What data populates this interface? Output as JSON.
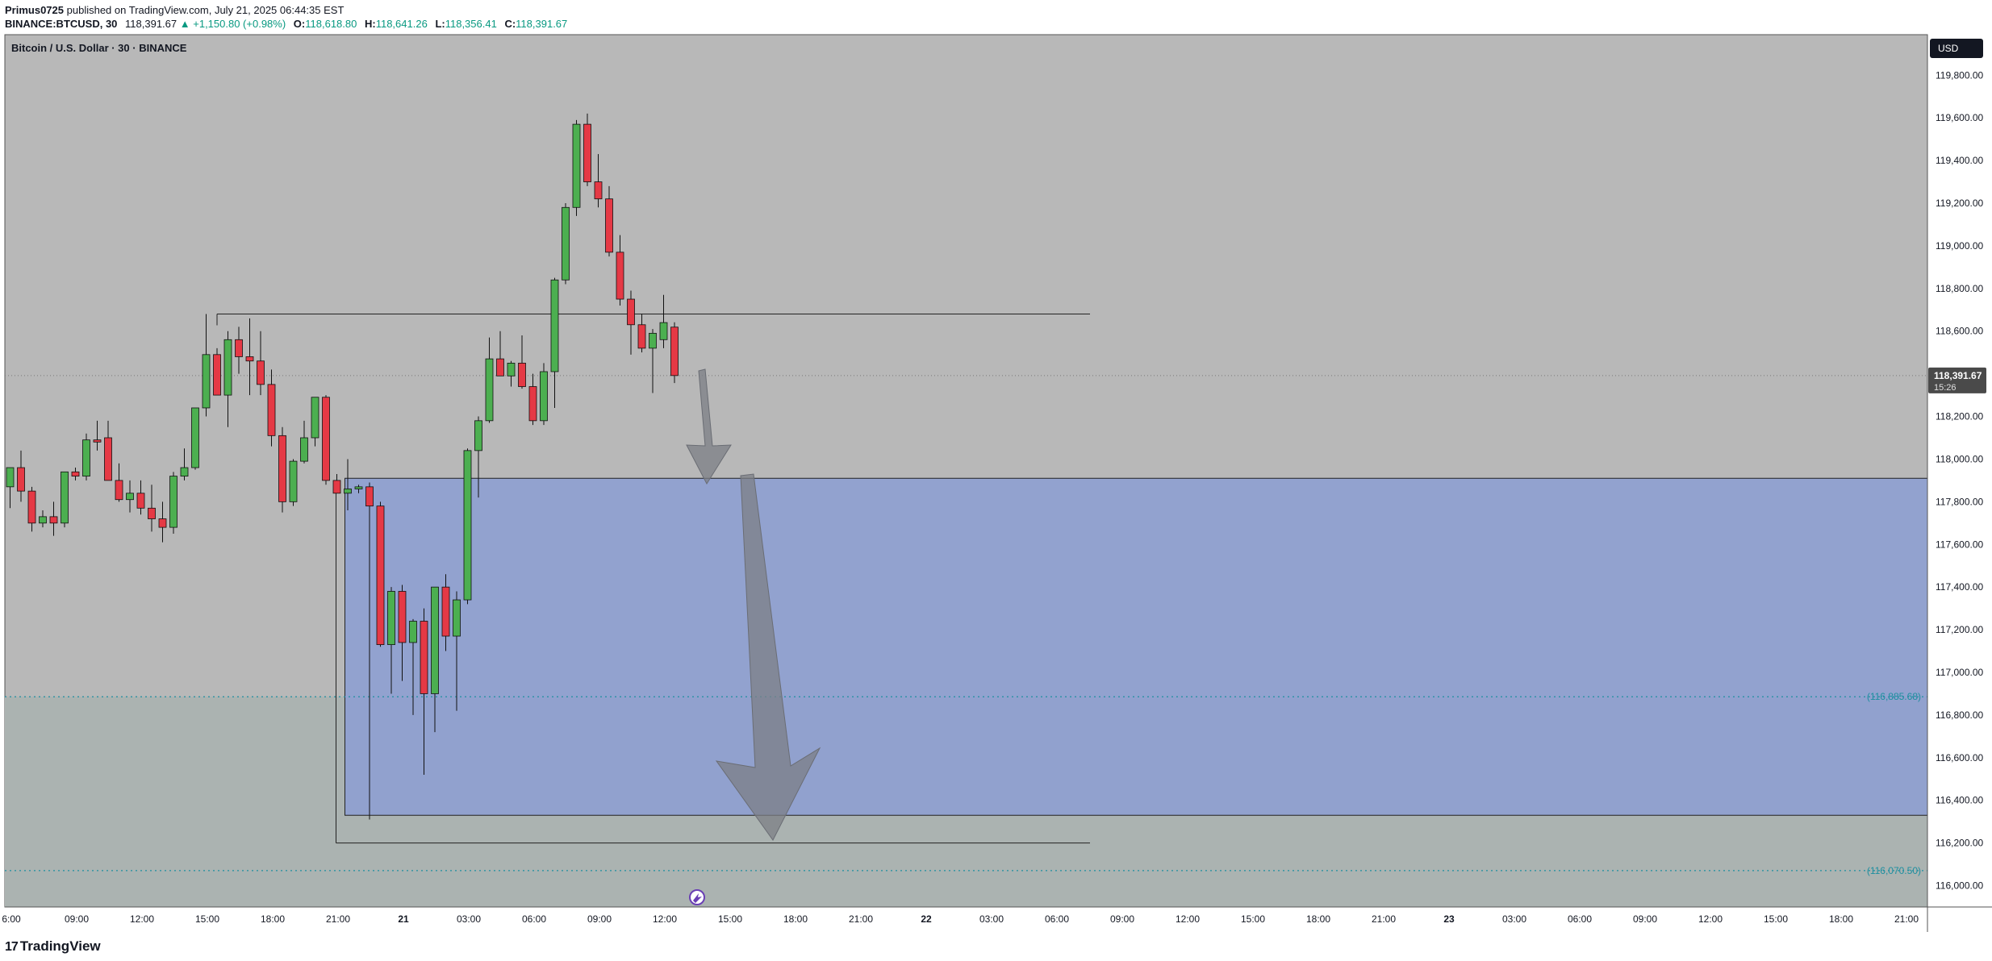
{
  "header": {
    "author": "Primus0725",
    "publish_text": "published on TradingView.com, July 21, 2025 06:44:35 EST",
    "symbol": "BINANCE:BTCUSD, 30",
    "last": "118,391.67",
    "change": "▲ +1,150.80 (+0.98%)",
    "o_label": "O:",
    "o": "118,618.80",
    "h_label": "H:",
    "h": "118,641.26",
    "l_label": "L:",
    "l": "118,356.41",
    "c_label": "C:",
    "c": "118,391.67"
  },
  "chart_title": "Bitcoin / U.S. Dollar · 30 · BINANCE",
  "currency_badge": "USD",
  "footer": {
    "brand": "TradingView",
    "brand_mark": "17"
  },
  "colors": {
    "background": "#b8b8b8",
    "zone_fill": "#8ea0d0",
    "up": "#4caf50",
    "down": "#e53945",
    "teal": "#1e8fa0",
    "price_badge": "#4a4a4a"
  },
  "chart_data": {
    "type": "candlestick",
    "interval_minutes": 30,
    "ylim": [
      115900,
      119990
    ],
    "y_ticks": [
      "116,000.00",
      "116,200.00",
      "116,400.00",
      "116,600.00",
      "116,800.00",
      "117,000.00",
      "117,200.00",
      "117,400.00",
      "117,600.00",
      "117,800.00",
      "118,000.00",
      "118,200.00",
      "118,400.00",
      "118,600.00",
      "118,800.00",
      "119,000.00",
      "119,200.00",
      "119,400.00",
      "119,600.00",
      "119,800.00"
    ],
    "x_ticks": [
      "6:00",
      "09:00",
      "12:00",
      "15:00",
      "18:00",
      "21:00",
      "21",
      "03:00",
      "06:00",
      "09:00",
      "12:00",
      "15:00",
      "18:00",
      "21:00",
      "22",
      "03:00",
      "06:00",
      "09:00",
      "12:00",
      "15:00",
      "18:00",
      "21:00",
      "23",
      "03:00",
      "06:00",
      "09:00",
      "12:00",
      "15:00",
      "18:00",
      "21:00"
    ],
    "candles": [
      {
        "time": "Jul 20 06:00",
        "o": 117870,
        "h": 117930,
        "l": 117770,
        "c": 117960
      },
      {
        "time": "Jul 20 06:30",
        "o": 117960,
        "h": 118040,
        "l": 117800,
        "c": 117850
      },
      {
        "time": "Jul 20 07:00",
        "o": 117850,
        "h": 117870,
        "l": 117660,
        "c": 117700
      },
      {
        "time": "Jul 20 07:30",
        "o": 117700,
        "h": 117760,
        "l": 117680,
        "c": 117730
      },
      {
        "time": "Jul 20 08:00",
        "o": 117730,
        "h": 117800,
        "l": 117640,
        "c": 117700
      },
      {
        "time": "Jul 20 08:30",
        "o": 117700,
        "h": 117940,
        "l": 117680,
        "c": 117940
      },
      {
        "time": "Jul 20 09:00",
        "o": 117940,
        "h": 117960,
        "l": 117900,
        "c": 117920
      },
      {
        "time": "Jul 20 09:30",
        "o": 117920,
        "h": 118120,
        "l": 117900,
        "c": 118090
      },
      {
        "time": "Jul 20 10:00",
        "o": 118090,
        "h": 118180,
        "l": 118040,
        "c": 118080
      },
      {
        "time": "Jul 20 10:30",
        "o": 118100,
        "h": 118180,
        "l": 117900,
        "c": 117900
      },
      {
        "time": "Jul 20 11:00",
        "o": 117900,
        "h": 117980,
        "l": 117800,
        "c": 117810
      },
      {
        "time": "Jul 20 11:30",
        "o": 117810,
        "h": 117900,
        "l": 117750,
        "c": 117840
      },
      {
        "time": "Jul 20 12:00",
        "o": 117840,
        "h": 117900,
        "l": 117740,
        "c": 117770
      },
      {
        "time": "Jul 20 12:30",
        "o": 117770,
        "h": 117880,
        "l": 117660,
        "c": 117720
      },
      {
        "time": "Jul 20 13:00",
        "o": 117720,
        "h": 117800,
        "l": 117610,
        "c": 117680
      },
      {
        "time": "Jul 20 13:30",
        "o": 117680,
        "h": 117940,
        "l": 117650,
        "c": 117920
      },
      {
        "time": "Jul 20 14:00",
        "o": 117920,
        "h": 118050,
        "l": 117900,
        "c": 117960
      },
      {
        "time": "Jul 20 14:30",
        "o": 117960,
        "h": 118240,
        "l": 117950,
        "c": 118240
      },
      {
        "time": "Jul 20 15:00",
        "o": 118240,
        "h": 118680,
        "l": 118200,
        "c": 118490
      },
      {
        "time": "Jul 20 15:30",
        "o": 118490,
        "h": 118520,
        "l": 118300,
        "c": 118300
      },
      {
        "time": "Jul 20 16:00",
        "o": 118300,
        "h": 118600,
        "l": 118150,
        "c": 118560
      },
      {
        "time": "Jul 20 16:30",
        "o": 118560,
        "h": 118620,
        "l": 118400,
        "c": 118480
      },
      {
        "time": "Jul 20 17:00",
        "o": 118480,
        "h": 118660,
        "l": 118300,
        "c": 118460
      },
      {
        "time": "Jul 20 17:30",
        "o": 118460,
        "h": 118600,
        "l": 118300,
        "c": 118350
      },
      {
        "time": "Jul 20 18:00",
        "o": 118350,
        "h": 118420,
        "l": 118060,
        "c": 118110
      },
      {
        "time": "Jul 20 18:30",
        "o": 118110,
        "h": 118150,
        "l": 117750,
        "c": 117800
      },
      {
        "time": "Jul 20 19:00",
        "o": 117800,
        "h": 118000,
        "l": 117780,
        "c": 117990
      },
      {
        "time": "Jul 20 19:30",
        "o": 117990,
        "h": 118180,
        "l": 117980,
        "c": 118100
      },
      {
        "time": "Jul 20 20:00",
        "o": 118100,
        "h": 118290,
        "l": 118060,
        "c": 118290
      },
      {
        "time": "Jul 20 20:30",
        "o": 118290,
        "h": 118300,
        "l": 117880,
        "c": 117900
      },
      {
        "time": "Jul 20 21:00",
        "o": 117900,
        "h": 117930,
        "l": 117850,
        "c": 117840
      },
      {
        "time": "Jul 20 21:30",
        "o": 117840,
        "h": 118000,
        "l": 117760,
        "c": 117860
      },
      {
        "time": "Jul 20 22:00",
        "o": 117860,
        "h": 117880,
        "l": 117840,
        "c": 117870
      },
      {
        "time": "Jul 20 22:30",
        "o": 117870,
        "h": 117890,
        "l": 116310,
        "c": 117780
      },
      {
        "time": "Jul 20 23:00",
        "o": 117780,
        "h": 117800,
        "l": 117120,
        "c": 117130
      },
      {
        "time": "Jul 20 23:30",
        "o": 117130,
        "h": 117400,
        "l": 116900,
        "c": 117380
      },
      {
        "time": "Jul 21 00:00",
        "o": 117380,
        "h": 117410,
        "l": 116960,
        "c": 117140
      },
      {
        "time": "Jul 21 00:30",
        "o": 117140,
        "h": 117250,
        "l": 116800,
        "c": 117240
      },
      {
        "time": "Jul 21 01:00",
        "o": 117240,
        "h": 117300,
        "l": 116520,
        "c": 116900
      },
      {
        "time": "Jul 21 01:30",
        "o": 116900,
        "h": 117400,
        "l": 116720,
        "c": 117400
      },
      {
        "time": "Jul 21 02:00",
        "o": 117400,
        "h": 117460,
        "l": 117100,
        "c": 117170
      },
      {
        "time": "Jul 21 02:30",
        "o": 117170,
        "h": 117380,
        "l": 116820,
        "c": 117340
      },
      {
        "time": "Jul 21 03:00",
        "o": 117340,
        "h": 118050,
        "l": 117320,
        "c": 118040
      },
      {
        "time": "Jul 21 03:30",
        "o": 118040,
        "h": 118200,
        "l": 117820,
        "c": 118180
      },
      {
        "time": "Jul 21 04:00",
        "o": 118180,
        "h": 118570,
        "l": 118170,
        "c": 118470
      },
      {
        "time": "Jul 21 04:30",
        "o": 118470,
        "h": 118600,
        "l": 118410,
        "c": 118390
      },
      {
        "time": "Jul 21 05:00",
        "o": 118390,
        "h": 118460,
        "l": 118340,
        "c": 118450
      },
      {
        "time": "Jul 21 05:30",
        "o": 118450,
        "h": 118580,
        "l": 118330,
        "c": 118340
      },
      {
        "time": "Jul 21 06:00",
        "o": 118340,
        "h": 118400,
        "l": 118160,
        "c": 118180
      },
      {
        "time": "Jul 21 06:30",
        "o": 118180,
        "h": 118450,
        "l": 118160,
        "c": 118410
      },
      {
        "time": "Jul 21 07:00",
        "o": 118410,
        "h": 118850,
        "l": 118240,
        "c": 118840
      },
      {
        "time": "Jul 21 07:30",
        "o": 118840,
        "h": 119200,
        "l": 118820,
        "c": 119180
      },
      {
        "time": "Jul 21 08:00",
        "o": 119180,
        "h": 119590,
        "l": 119140,
        "c": 119570
      },
      {
        "time": "Jul 21 08:30",
        "o": 119570,
        "h": 119620,
        "l": 119280,
        "c": 119300
      },
      {
        "time": "Jul 21 09:00",
        "o": 119300,
        "h": 119430,
        "l": 119180,
        "c": 119220
      },
      {
        "time": "Jul 21 09:30",
        "o": 119220,
        "h": 119280,
        "l": 118950,
        "c": 118970
      },
      {
        "time": "Jul 21 10:00",
        "o": 118970,
        "h": 119050,
        "l": 118720,
        "c": 118750
      },
      {
        "time": "Jul 21 10:30",
        "o": 118750,
        "h": 118790,
        "l": 118490,
        "c": 118630
      },
      {
        "time": "Jul 21 11:00",
        "o": 118630,
        "h": 118680,
        "l": 118500,
        "c": 118520
      },
      {
        "time": "Jul 21 11:30",
        "o": 118520,
        "h": 118610,
        "l": 118310,
        "c": 118590
      },
      {
        "time": "Jul 21 12:00",
        "o": 118560,
        "h": 118770,
        "l": 118520,
        "c": 118640
      },
      {
        "time": "Jul 21 12:30",
        "o": 118618.8,
        "h": 118641.26,
        "l": 118356.41,
        "c": 118391.67
      }
    ],
    "current_price": "118,391.67",
    "countdown": "15:26",
    "levels": [
      {
        "price": 116885.68,
        "label": "(116,885.68)"
      },
      {
        "price": 116070.5,
        "label": "(116,070.50)"
      }
    ],
    "zone": {
      "top": 117910,
      "bottom": 116330
    },
    "resistance": 118680,
    "support": 116200
  }
}
